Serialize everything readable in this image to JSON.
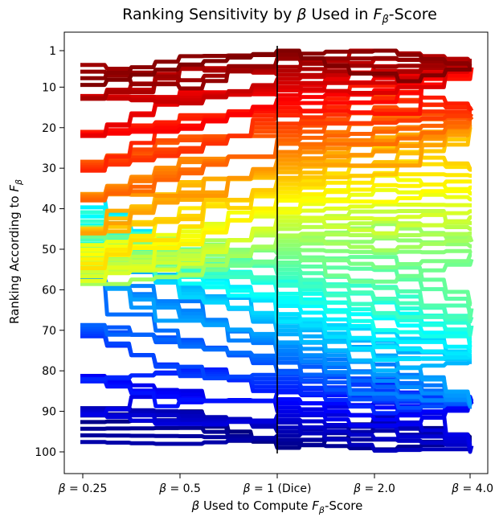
{
  "chart_data": {
    "type": "line",
    "title_parts": [
      "Ranking Sensitivity by ",
      "β",
      " Used in ",
      "F",
      "β",
      "-Score"
    ],
    "xlabel_parts": [
      "β",
      " Used to Compute ",
      "F",
      "β",
      "-Score"
    ],
    "ylabel_parts": [
      "Ranking According to ",
      "F",
      "β"
    ],
    "x_ticks": [
      {
        "beta": "β",
        "rest": " = 0.25"
      },
      {
        "beta": "β",
        "rest": " = 0.5"
      },
      {
        "beta": "β",
        "rest": " = 1 (Dice)"
      },
      {
        "beta": "β",
        "rest": " = 2.0"
      },
      {
        "beta": "β",
        "rest": " = 4.0"
      }
    ],
    "y_ticks": [
      "1",
      "10",
      "20",
      "30",
      "40",
      "50",
      "60",
      "70",
      "80",
      "90",
      "100"
    ],
    "y_tick_values": [
      1,
      10,
      20,
      30,
      40,
      50,
      60,
      70,
      80,
      90,
      100
    ],
    "ylim": [
      100,
      1
    ],
    "y_inverted": true,
    "n_series": 100,
    "reference_line_x_index": 2,
    "colormap": "jet",
    "series_note": "100 lines, each colored by its rank at beta = 1 (Dice)",
    "rank_paths": [
      {
        "rank_at_dice": 5,
        "ranks": [
          9,
          6,
          5,
          4,
          3
        ]
      },
      {
        "rank_at_dice": 15,
        "ranks": [
          24,
          19,
          15,
          12,
          10
        ]
      },
      {
        "rank_at_dice": 25,
        "ranks": [
          36,
          30,
          25,
          21,
          19
        ]
      },
      {
        "rank_at_dice": 35,
        "ranks": [
          50,
          42,
          35,
          30,
          26
        ]
      },
      {
        "rank_at_dice": 45,
        "ranks": [
          55,
          52,
          45,
          44,
          46
        ]
      },
      {
        "rank_at_dice": 55,
        "ranks": [
          48,
          52,
          55,
          58,
          62
        ]
      },
      {
        "rank_at_dice": 65,
        "ranks": [
          42,
          56,
          65,
          72,
          78
        ]
      },
      {
        "rank_at_dice": 75,
        "ranks": [
          58,
          68,
          75,
          82,
          86
        ]
      },
      {
        "rank_at_dice": 85,
        "ranks": [
          80,
          83,
          85,
          88,
          90
        ]
      },
      {
        "rank_at_dice": 95,
        "ranks": [
          93,
          94,
          95,
          96,
          97
        ]
      }
    ]
  }
}
